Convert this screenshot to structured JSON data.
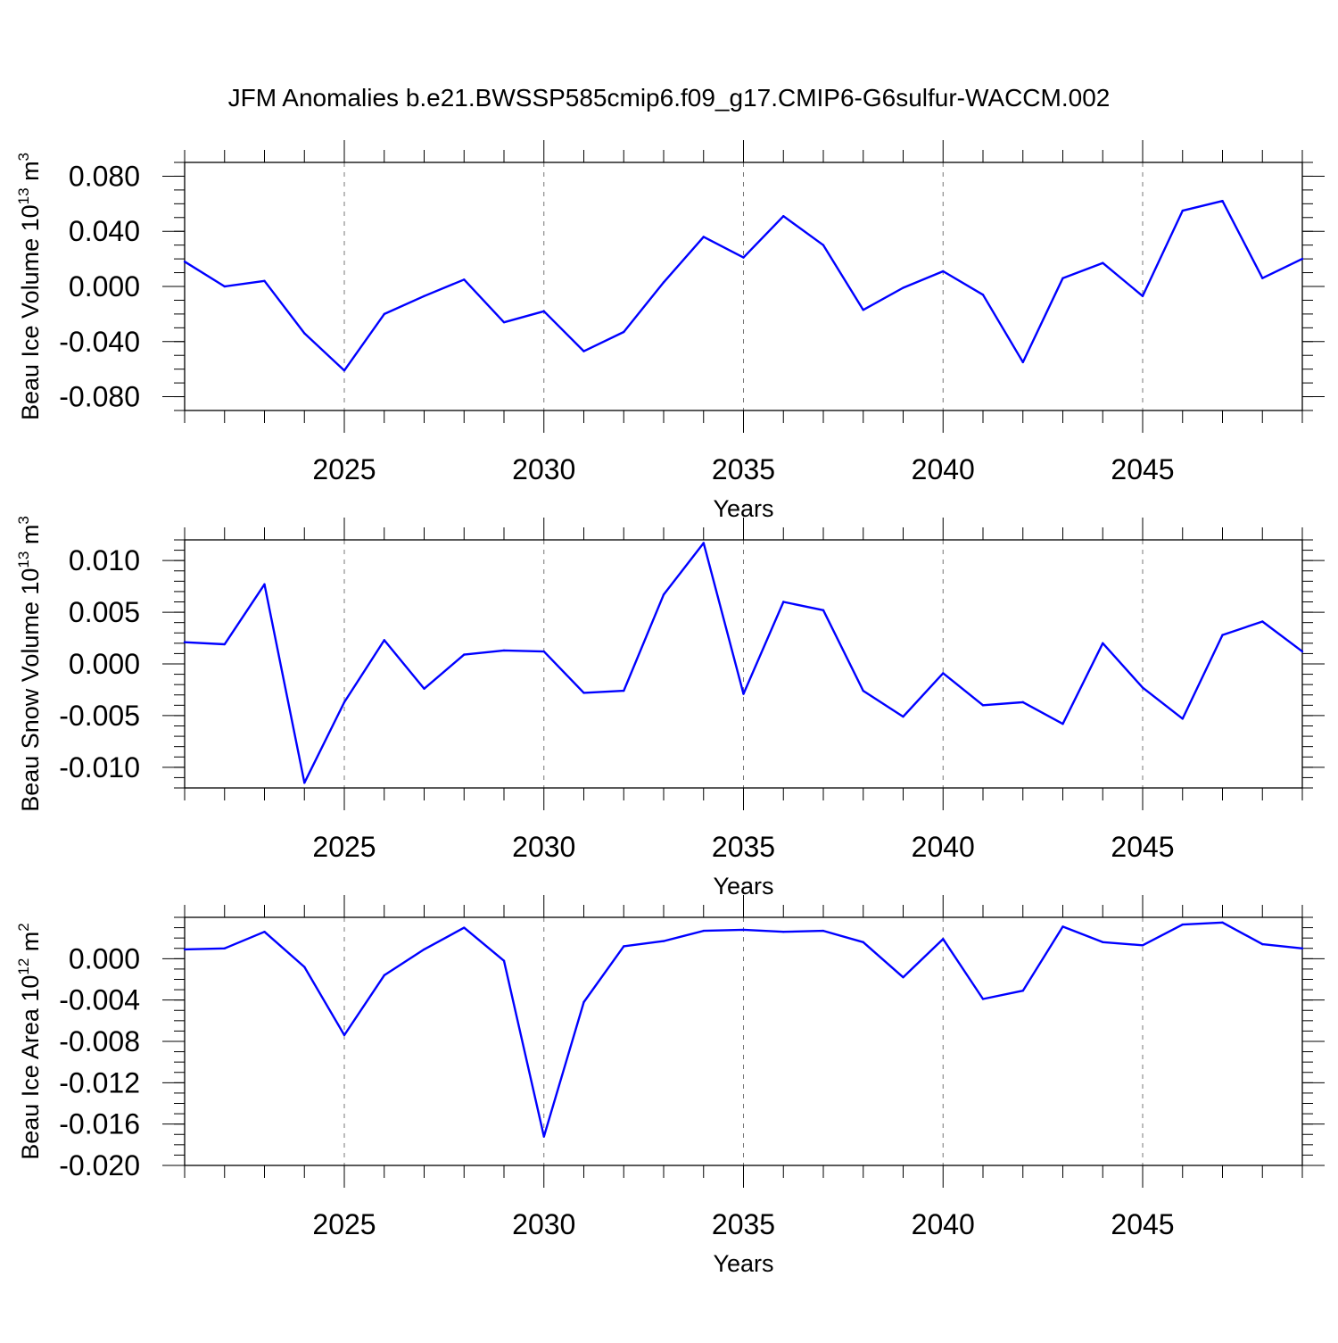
{
  "title": "JFM Anomalies b.e21.BWSSP585cmip6.f09_g17.CMIP6-G6sulfur-WACCM.002",
  "chart_data": [
    {
      "type": "line",
      "ylabel": {
        "base": "Beau Ice Volume 10",
        "exp": "13",
        "unit": " m",
        "unit_exp": "3"
      },
      "xlabel": "Years",
      "xlim": [
        2021,
        2049
      ],
      "ylim": [
        -0.09,
        0.09
      ],
      "x_ticks": [
        2025,
        2030,
        2035,
        2040,
        2045
      ],
      "x_tick_labels": [
        "2025",
        "2030",
        "2035",
        "2040",
        "2045"
      ],
      "y_ticks": [
        -0.08,
        -0.04,
        0.0,
        0.04,
        0.08
      ],
      "y_tick_labels": [
        "-0.080",
        "-0.040",
        "0.000",
        "0.040",
        "0.080"
      ],
      "y_minor_step": 0.01,
      "grid": "dashed vertical at major x ticks",
      "line_color": "#0000ff",
      "x": [
        2021,
        2022,
        2023,
        2024,
        2025,
        2026,
        2027,
        2028,
        2029,
        2030,
        2031,
        2032,
        2033,
        2034,
        2035,
        2036,
        2037,
        2038,
        2039,
        2040,
        2041,
        2042,
        2043,
        2044,
        2045,
        2046,
        2047,
        2048,
        2049
      ],
      "values": [
        0.018,
        0.0,
        0.004,
        -0.034,
        -0.061,
        -0.02,
        -0.007,
        0.005,
        -0.026,
        -0.018,
        -0.047,
        -0.033,
        0.003,
        0.036,
        0.021,
        0.051,
        0.03,
        -0.017,
        -0.001,
        0.011,
        -0.006,
        -0.055,
        0.006,
        0.017,
        -0.007,
        0.055,
        0.062,
        0.006,
        0.02
      ]
    },
    {
      "type": "line",
      "ylabel": {
        "base": "Beau Snow Volume 10",
        "exp": "13",
        "unit": " m",
        "unit_exp": "3"
      },
      "xlabel": "Years",
      "xlim": [
        2021,
        2049
      ],
      "ylim": [
        -0.012,
        0.012
      ],
      "x_ticks": [
        2025,
        2030,
        2035,
        2040,
        2045
      ],
      "x_tick_labels": [
        "2025",
        "2030",
        "2035",
        "2040",
        "2045"
      ],
      "y_ticks": [
        -0.01,
        -0.005,
        0.0,
        0.005,
        0.01
      ],
      "y_tick_labels": [
        "-0.010",
        "-0.005",
        "0.000",
        "0.005",
        "0.010"
      ],
      "y_minor_step": 0.001,
      "grid": "dashed vertical at major x ticks",
      "line_color": "#0000ff",
      "x": [
        2021,
        2022,
        2023,
        2024,
        2025,
        2026,
        2027,
        2028,
        2029,
        2030,
        2031,
        2032,
        2033,
        2034,
        2035,
        2036,
        2037,
        2038,
        2039,
        2040,
        2041,
        2042,
        2043,
        2044,
        2045,
        2046,
        2047,
        2048,
        2049
      ],
      "values": [
        0.0021,
        0.0019,
        0.0077,
        -0.0115,
        -0.0037,
        0.0023,
        -0.0024,
        0.0009,
        0.0013,
        0.0012,
        -0.0028,
        -0.0026,
        0.0067,
        0.0117,
        -0.0029,
        0.006,
        0.0052,
        -0.0026,
        -0.0051,
        -0.0009,
        -0.004,
        -0.0037,
        -0.0058,
        0.002,
        -0.0023,
        -0.0053,
        0.0028,
        0.0041,
        0.0012
      ]
    },
    {
      "type": "line",
      "ylabel": {
        "base": "Beau Ice Area 10",
        "exp": "12",
        "unit": " m",
        "unit_exp": "2"
      },
      "xlabel": "Years",
      "xlim": [
        2021,
        2049
      ],
      "ylim": [
        -0.02,
        0.004
      ],
      "x_ticks": [
        2025,
        2030,
        2035,
        2040,
        2045
      ],
      "x_tick_labels": [
        "2025",
        "2030",
        "2035",
        "2040",
        "2045"
      ],
      "y_ticks": [
        -0.02,
        -0.016,
        -0.012,
        -0.008,
        -0.004,
        0.0
      ],
      "y_tick_labels": [
        "-0.020",
        "-0.016",
        "-0.012",
        "-0.008",
        "-0.004",
        "0.000"
      ],
      "y_minor_step": 0.001,
      "grid": "dashed vertical at major x ticks",
      "line_color": "#0000ff",
      "x": [
        2021,
        2022,
        2023,
        2024,
        2025,
        2026,
        2027,
        2028,
        2029,
        2030,
        2031,
        2032,
        2033,
        2034,
        2035,
        2036,
        2037,
        2038,
        2039,
        2040,
        2041,
        2042,
        2043,
        2044,
        2045,
        2046,
        2047,
        2048,
        2049
      ],
      "values": [
        0.0009,
        0.001,
        0.0026,
        -0.0008,
        -0.0074,
        -0.0016,
        0.0009,
        0.003,
        -0.0002,
        -0.0172,
        -0.0042,
        0.0012,
        0.0017,
        0.0027,
        0.0028,
        0.0026,
        0.0027,
        0.0016,
        -0.0018,
        0.0019,
        -0.0039,
        -0.0031,
        0.0031,
        0.0016,
        0.0013,
        0.0033,
        0.0035,
        0.0014,
        0.001
      ]
    }
  ]
}
